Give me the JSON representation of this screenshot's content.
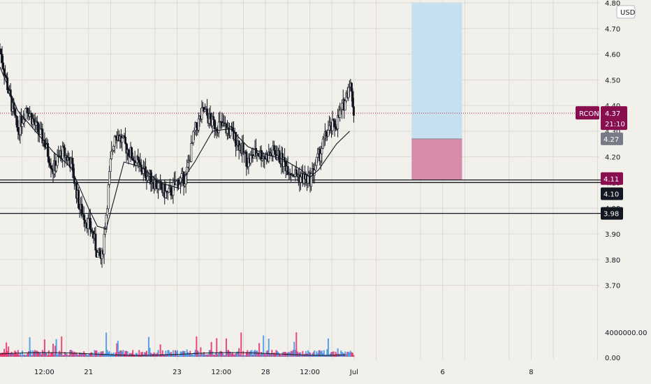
{
  "chart_data": {
    "type": "candlestick",
    "symbol": "RCON",
    "currency": "USD",
    "countdown": "21:10",
    "last_price": 4.37,
    "price_ticks": [
      "4.80",
      "4.70",
      "4.60",
      "4.50",
      "4.40",
      "4.30",
      "4.20",
      "4.10",
      "4.00",
      "3.90",
      "3.80",
      "3.70"
    ],
    "ylim": [
      3.62,
      4.8
    ],
    "volume_axis": [
      "4000000.00",
      "0.00"
    ],
    "time_labels": [
      {
        "label": "12:00",
        "t": 0.5
      },
      {
        "label": "21",
        "t": 1.0
      },
      {
        "label": "23",
        "t": 2.0
      },
      {
        "label": "12:00",
        "t": 2.5
      },
      {
        "label": "28",
        "t": 3.0
      },
      {
        "label": "12:00",
        "t": 3.5
      },
      {
        "label": "Jul",
        "t": 4.0
      },
      {
        "label": "6",
        "t": 5.0
      },
      {
        "label": "8",
        "t": 6.0
      }
    ],
    "price_path": [
      [
        0.0,
        4.62
      ],
      [
        0.1,
        4.45
      ],
      [
        0.2,
        4.3
      ],
      [
        0.3,
        4.4
      ],
      [
        0.4,
        4.32
      ],
      [
        0.5,
        4.26
      ],
      [
        0.6,
        4.15
      ],
      [
        0.7,
        4.22
      ],
      [
        0.8,
        4.18
      ],
      [
        0.9,
        4.0
      ],
      [
        1.0,
        3.94
      ],
      [
        1.05,
        3.9
      ],
      [
        1.1,
        3.82
      ],
      [
        1.15,
        3.8
      ],
      [
        1.2,
        3.98
      ],
      [
        1.25,
        4.18
      ],
      [
        1.3,
        4.3
      ],
      [
        1.4,
        4.25
      ],
      [
        1.5,
        4.2
      ],
      [
        1.6,
        4.15
      ],
      [
        1.7,
        4.12
      ],
      [
        1.8,
        4.08
      ],
      [
        1.9,
        4.05
      ],
      [
        2.0,
        4.1
      ],
      [
        2.1,
        4.12
      ],
      [
        2.2,
        4.3
      ],
      [
        2.3,
        4.38
      ],
      [
        2.4,
        4.33
      ],
      [
        2.5,
        4.32
      ],
      [
        2.6,
        4.3
      ],
      [
        2.7,
        4.25
      ],
      [
        2.8,
        4.18
      ],
      [
        2.9,
        4.22
      ],
      [
        3.0,
        4.2
      ],
      [
        3.1,
        4.22
      ],
      [
        3.2,
        4.18
      ],
      [
        3.3,
        4.14
      ],
      [
        3.4,
        4.12
      ],
      [
        3.5,
        4.11
      ],
      [
        3.6,
        4.2
      ],
      [
        3.7,
        4.3
      ],
      [
        3.8,
        4.33
      ],
      [
        3.9,
        4.42
      ],
      [
        3.95,
        4.5
      ],
      [
        4.0,
        4.37
      ]
    ],
    "moving_average": [
      [
        0.0,
        4.55
      ],
      [
        0.2,
        4.38
      ],
      [
        0.4,
        4.3
      ],
      [
        0.6,
        4.22
      ],
      [
        0.8,
        4.16
      ],
      [
        1.0,
        4.0
      ],
      [
        1.1,
        3.93
      ],
      [
        1.2,
        3.92
      ],
      [
        1.3,
        4.05
      ],
      [
        1.4,
        4.18
      ],
      [
        1.6,
        4.16
      ],
      [
        1.8,
        4.1
      ],
      [
        2.0,
        4.08
      ],
      [
        2.2,
        4.18
      ],
      [
        2.4,
        4.3
      ],
      [
        2.6,
        4.31
      ],
      [
        2.8,
        4.24
      ],
      [
        3.0,
        4.21
      ],
      [
        3.2,
        4.19
      ],
      [
        3.4,
        4.15
      ],
      [
        3.5,
        4.12
      ],
      [
        3.6,
        4.15
      ],
      [
        3.8,
        4.25
      ],
      [
        3.95,
        4.3
      ]
    ],
    "horizontal_lines": [
      {
        "price": 4.11,
        "style": "solid",
        "label": "4.11"
      },
      {
        "price": 4.1,
        "style": "solid",
        "label": "4.10"
      },
      {
        "price": 3.98,
        "style": "solid",
        "label": "3.98"
      },
      {
        "price": 4.37,
        "style": "dotted",
        "color": "#b2224e"
      }
    ],
    "position_tool": {
      "t_start": 4.65,
      "t_end": 5.22,
      "entry": 4.27,
      "stop": 4.11,
      "target": 4.8,
      "entry_label": "4.27",
      "target_color": "#c6e0f0",
      "stop_color": "#d88aab"
    },
    "volume_series": {
      "up_color": "#2f8fe8",
      "down_color": "#e91e63",
      "ma_color": "#131722"
    },
    "colors": {
      "background": "#f2f0ea",
      "grid": "#dcdad4",
      "candle": "#131722",
      "symbol_tag": "#880e4f",
      "entry_tag": "#787b86"
    }
  }
}
